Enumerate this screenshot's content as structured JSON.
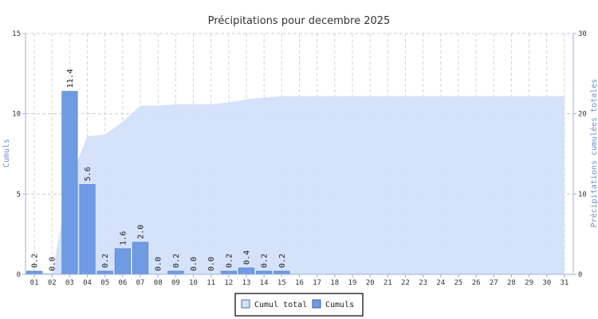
{
  "chart_data": {
    "type": "bar",
    "title": "Précipitations pour decembre 2025",
    "ylabel_left": "Cumuls",
    "ylabel_right": "Précipitations cumulées totales",
    "ylim_left": [
      0,
      15
    ],
    "ylim_right": [
      0,
      30
    ],
    "yticks_left": [
      0,
      5,
      10,
      15
    ],
    "yticks_right": [
      0,
      10,
      20,
      30
    ],
    "grid": true,
    "legend_position": "bottom-center",
    "categories": [
      "01",
      "02",
      "03",
      "04",
      "05",
      "06",
      "07",
      "08",
      "09",
      "10",
      "11",
      "12",
      "13",
      "14",
      "15",
      "16",
      "17",
      "18",
      "19",
      "20",
      "21",
      "22",
      "23",
      "24",
      "25",
      "26",
      "27",
      "28",
      "29",
      "30",
      "31"
    ],
    "bar_labels": [
      "0.2",
      "0.0",
      "11.4",
      "5.6",
      "0.2",
      "1.6",
      "2.0",
      "0.0",
      "0.2",
      "0.0",
      "0.0",
      "0.2",
      "0.4",
      "0.2",
      "0.2"
    ],
    "series": [
      {
        "name": "Cumuls",
        "type": "bar",
        "axis": "left",
        "color": "#6f9be3",
        "values": [
          0.2,
          0.0,
          11.4,
          5.6,
          0.2,
          1.6,
          2.0,
          0.0,
          0.2,
          0.0,
          0.0,
          0.2,
          0.4,
          0.2,
          0.2,
          null,
          null,
          null,
          null,
          null,
          null,
          null,
          null,
          null,
          null,
          null,
          null,
          null,
          null,
          null,
          null
        ]
      },
      {
        "name": "Cumul total",
        "type": "area",
        "axis": "right",
        "color": "#d2e0fa",
        "values": [
          0.2,
          0.2,
          11.6,
          17.2,
          17.4,
          19.0,
          21.0,
          21.0,
          21.2,
          21.2,
          21.2,
          21.4,
          21.8,
          22.0,
          22.2,
          22.2,
          22.2,
          22.2,
          22.2,
          22.2,
          22.2,
          22.2,
          22.2,
          22.2,
          22.2,
          22.2,
          22.2,
          22.2,
          22.2,
          22.2,
          22.2
        ]
      }
    ]
  }
}
